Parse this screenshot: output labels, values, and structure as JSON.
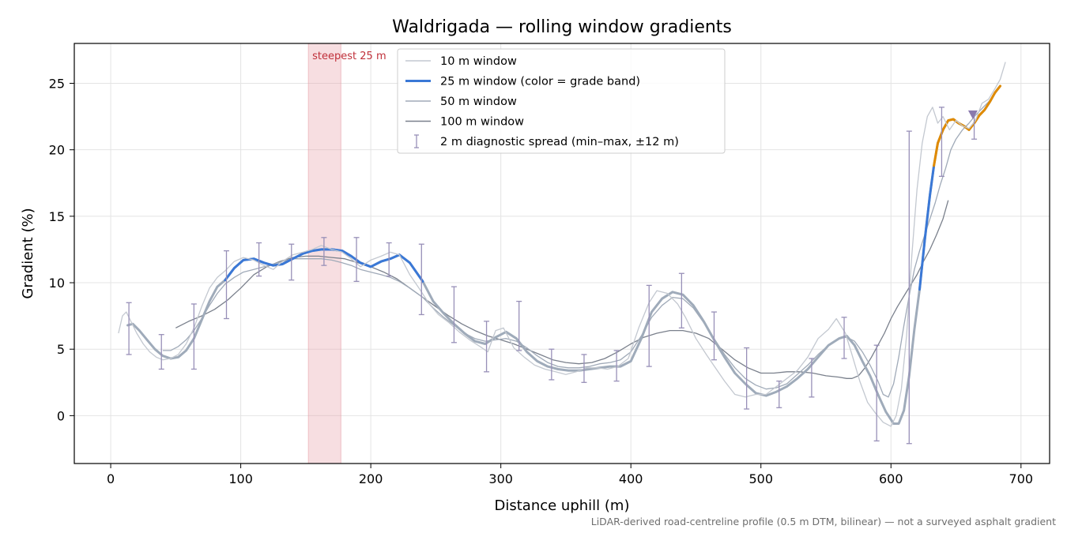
{
  "chart_data": {
    "type": "line",
    "title": "Waldrigada — rolling window gradients",
    "xlabel": "Distance uphill (m)",
    "ylabel": "Gradient (%)",
    "footnote": "LiDAR-derived road-centreline profile (0.5 m DTM, bilinear) — not a surveyed asphalt gradient",
    "xlim": [
      -28,
      722
    ],
    "ylim": [
      -3.6,
      28
    ],
    "x_ticks": [
      0,
      100,
      200,
      300,
      400,
      500,
      600,
      700
    ],
    "y_ticks": [
      0,
      5,
      10,
      15,
      20,
      25
    ],
    "grid": true,
    "legend_position": "top-center",
    "highlight": {
      "x0": 152,
      "x1": 177,
      "label": "steepest 25 m",
      "color": "#e8a0a8"
    },
    "series": [
      {
        "name": "10 m window",
        "color": "#c3c8d0",
        "width": 1.3,
        "x": [
          6,
          9,
          12,
          16,
          20,
          25,
          30,
          35,
          40,
          46,
          52,
          58,
          64,
          70,
          76,
          82,
          88,
          95,
          102,
          110,
          118,
          125,
          132,
          140,
          148,
          155,
          162,
          170,
          178,
          185,
          192,
          200,
          208,
          215,
          222,
          230,
          237,
          245,
          252,
          260,
          268,
          276,
          284,
          290,
          296,
          302,
          310,
          318,
          326,
          334,
          342,
          350,
          358,
          366,
          374,
          382,
          390,
          398,
          406,
          414,
          420,
          428,
          436,
          442,
          450,
          458,
          465,
          472,
          480,
          488,
          496,
          504,
          512,
          520,
          528,
          536,
          544,
          552,
          558,
          565,
          570,
          576,
          582,
          588,
          594,
          600,
          604,
          608,
          612,
          616,
          620,
          624,
          628,
          632,
          636,
          640,
          645,
          650,
          655,
          660,
          665,
          670,
          675,
          680,
          684,
          688
        ],
        "y": [
          6.2,
          7.5,
          7.8,
          7.0,
          6.2,
          5.4,
          4.8,
          4.4,
          4.2,
          4.3,
          4.6,
          5.4,
          6.6,
          8.2,
          9.6,
          10.4,
          10.9,
          11.6,
          11.9,
          11.7,
          11.3,
          11.0,
          11.6,
          12.1,
          12.3,
          12.5,
          12.8,
          12.5,
          12.3,
          11.8,
          11.2,
          11.7,
          12.0,
          12.3,
          12.1,
          10.6,
          9.6,
          8.4,
          7.6,
          7.0,
          6.3,
          5.7,
          5.2,
          4.8,
          6.4,
          6.6,
          5.1,
          4.4,
          3.8,
          3.5,
          3.3,
          3.1,
          3.3,
          3.6,
          3.6,
          3.5,
          3.7,
          4.3,
          6.6,
          8.5,
          9.4,
          9.2,
          8.4,
          7.4,
          5.8,
          4.6,
          3.6,
          2.6,
          1.6,
          1.4,
          1.6,
          1.6,
          2.2,
          2.8,
          3.4,
          4.4,
          5.8,
          6.5,
          7.3,
          6.2,
          4.6,
          2.6,
          1.0,
          0.2,
          -0.5,
          -0.8,
          0.0,
          2.0,
          6.0,
          12.0,
          17.0,
          20.5,
          22.5,
          23.2,
          22.0,
          22.5,
          21.5,
          22.2,
          21.8,
          21.6,
          22.2,
          23.5,
          23.8,
          24.6,
          25.3,
          26.6
        ]
      },
      {
        "name": "25 m window (color = grade band)",
        "color": "#3a78d6",
        "width": 2.8,
        "x": [
          13,
          17,
          22,
          28,
          34,
          40,
          46,
          52,
          58,
          64,
          70,
          76,
          82,
          88,
          95,
          102,
          110,
          118,
          125,
          132,
          140,
          148,
          155,
          162,
          170,
          178,
          185,
          192,
          200,
          208,
          215,
          222,
          230,
          240,
          248,
          256,
          264,
          272,
          280,
          288,
          296,
          304,
          312,
          320,
          328,
          336,
          344,
          352,
          360,
          368,
          376,
          384,
          392,
          400,
          408,
          416,
          424,
          432,
          440,
          448,
          456,
          464,
          472,
          480,
          488,
          496,
          504,
          512,
          520,
          528,
          536,
          544,
          552,
          560,
          566,
          572,
          578,
          584,
          590,
          596,
          602,
          606,
          610,
          614,
          618,
          622,
          626,
          630,
          633,
          636,
          640,
          644,
          648,
          652,
          656,
          660,
          664,
          668,
          672,
          676,
          680,
          684
        ],
        "y": [
          6.8,
          6.9,
          6.4,
          5.7,
          5.0,
          4.5,
          4.3,
          4.4,
          4.9,
          5.8,
          7.2,
          8.6,
          9.7,
          10.2,
          11.1,
          11.7,
          11.8,
          11.5,
          11.3,
          11.4,
          11.8,
          12.2,
          12.4,
          12.5,
          12.5,
          12.4,
          12.0,
          11.5,
          11.2,
          11.6,
          11.8,
          12.1,
          11.5,
          10.1,
          8.6,
          7.7,
          6.9,
          6.2,
          5.6,
          5.4,
          5.9,
          6.3,
          5.8,
          4.8,
          4.1,
          3.7,
          3.5,
          3.4,
          3.4,
          3.5,
          3.6,
          3.7,
          3.7,
          4.1,
          5.8,
          7.8,
          8.8,
          9.3,
          9.1,
          8.3,
          7.1,
          5.7,
          4.4,
          3.2,
          2.4,
          1.7,
          1.5,
          1.8,
          2.2,
          2.8,
          3.5,
          4.4,
          5.3,
          5.8,
          6.0,
          5.3,
          4.1,
          3.0,
          1.6,
          0.3,
          -0.6,
          -0.6,
          0.4,
          3.0,
          6.5,
          9.5,
          13.2,
          16.6,
          18.8,
          20.5,
          21.5,
          22.2,
          22.3,
          22.0,
          21.8,
          21.5,
          22.0,
          22.6,
          23.0,
          23.6,
          24.3,
          24.8
        ],
        "bands": [
          {
            "from": 88,
            "to": 240,
            "color": "#3a78d6"
          },
          {
            "from": 622,
            "to": 633,
            "color": "#3a78d6"
          },
          {
            "from": 633,
            "to": 684,
            "color": "#e08a00"
          }
        ]
      },
      {
        "name": "50 m window",
        "color": "#a0aab8",
        "width": 1.3,
        "x": [
          40,
          46,
          52,
          58,
          64,
          70,
          76,
          82,
          88,
          95,
          102,
          110,
          118,
          125,
          132,
          140,
          148,
          155,
          162,
          170,
          178,
          185,
          192,
          200,
          208,
          215,
          222,
          230,
          240,
          248,
          256,
          264,
          272,
          280,
          288,
          296,
          304,
          312,
          320,
          328,
          336,
          344,
          352,
          360,
          368,
          376,
          384,
          392,
          400,
          408,
          416,
          424,
          432,
          440,
          448,
          456,
          464,
          472,
          480,
          488,
          496,
          504,
          512,
          520,
          528,
          536,
          544,
          552,
          560,
          566,
          572,
          578,
          584,
          590,
          594,
          598,
          602,
          606,
          610,
          614,
          618,
          622,
          626,
          630,
          634,
          638,
          642,
          646,
          650,
          655,
          660,
          665,
          670,
          675,
          680,
          684
        ],
        "y": [
          4.9,
          4.9,
          5.2,
          5.7,
          6.4,
          7.3,
          8.3,
          9.2,
          9.9,
          10.4,
          10.8,
          11.0,
          11.2,
          11.4,
          11.6,
          11.8,
          11.8,
          11.8,
          11.8,
          11.7,
          11.5,
          11.3,
          11.0,
          10.8,
          10.6,
          10.4,
          10.1,
          9.6,
          8.9,
          8.1,
          7.4,
          6.8,
          6.2,
          5.8,
          5.6,
          5.7,
          5.8,
          5.6,
          5.1,
          4.5,
          4.0,
          3.7,
          3.6,
          3.6,
          3.7,
          3.9,
          4.0,
          4.2,
          4.8,
          6.0,
          7.4,
          8.3,
          8.9,
          8.8,
          8.1,
          7.0,
          5.8,
          4.6,
          3.6,
          2.8,
          2.3,
          2.0,
          2.1,
          2.4,
          3.1,
          3.8,
          4.6,
          5.3,
          5.8,
          5.9,
          5.6,
          4.8,
          3.8,
          2.6,
          1.6,
          1.4,
          2.4,
          4.4,
          6.8,
          9.0,
          11.0,
          12.4,
          13.6,
          14.8,
          16.0,
          17.4,
          18.6,
          20.0,
          20.8,
          21.5,
          22.0,
          22.6,
          23.1,
          23.6,
          24.2,
          24.8
        ]
      },
      {
        "name": "100 m window",
        "color": "#7a808c",
        "width": 1.3,
        "x": [
          50,
          60,
          70,
          80,
          90,
          100,
          110,
          120,
          130,
          140,
          150,
          160,
          170,
          180,
          190,
          200,
          210,
          220,
          230,
          240,
          250,
          260,
          270,
          280,
          290,
          300,
          310,
          320,
          330,
          340,
          350,
          360,
          370,
          380,
          390,
          400,
          410,
          420,
          430,
          440,
          450,
          460,
          470,
          480,
          490,
          500,
          510,
          520,
          530,
          540,
          550,
          560,
          566,
          570,
          575,
          580,
          585,
          590,
          595,
          600,
          605,
          610,
          615,
          620,
          625,
          630,
          635,
          640,
          644
        ],
        "y": [
          6.6,
          7.1,
          7.5,
          8.0,
          8.7,
          9.6,
          10.6,
          11.2,
          11.6,
          11.9,
          12.0,
          12.0,
          11.9,
          11.8,
          11.5,
          11.2,
          10.8,
          10.3,
          9.6,
          8.9,
          8.2,
          7.5,
          6.9,
          6.4,
          6.0,
          5.7,
          5.4,
          5.0,
          4.6,
          4.2,
          4.0,
          3.9,
          4.0,
          4.3,
          4.8,
          5.4,
          5.9,
          6.2,
          6.4,
          6.4,
          6.2,
          5.8,
          5.0,
          4.2,
          3.6,
          3.2,
          3.2,
          3.3,
          3.3,
          3.2,
          3.0,
          2.9,
          2.8,
          2.8,
          3.0,
          3.6,
          4.4,
          5.3,
          6.2,
          7.3,
          8.2,
          9.0,
          9.8,
          10.6,
          11.6,
          12.5,
          13.6,
          14.8,
          16.2
        ]
      }
    ],
    "error_bars": {
      "name": "2 m diagnostic spread (min–max, ±12 m)",
      "color": "#9890b8",
      "x": [
        14,
        39,
        64,
        89,
        114,
        139,
        164,
        189,
        214,
        239,
        264,
        289,
        314,
        339,
        364,
        389,
        414,
        439,
        464,
        489,
        514,
        539,
        564,
        589,
        614,
        639,
        664
      ],
      "low": [
        4.6,
        3.5,
        3.5,
        7.3,
        10.5,
        10.2,
        11.3,
        10.1,
        10.5,
        7.6,
        5.5,
        3.3,
        4.9,
        2.7,
        2.5,
        2.6,
        3.7,
        6.6,
        4.2,
        0.5,
        0.6,
        1.4,
        4.3,
        -1.9,
        -2.1,
        18.0,
        20.8
      ],
      "high": [
        8.5,
        6.1,
        8.4,
        12.4,
        13.0,
        12.9,
        13.4,
        13.4,
        13.0,
        12.9,
        9.7,
        7.1,
        8.6,
        5.0,
        4.6,
        4.9,
        9.8,
        10.7,
        7.8,
        5.1,
        2.6,
        4.3,
        7.4,
        5.3,
        21.4,
        23.2,
        22.9
      ],
      "marker": {
        "x": 663,
        "y": 22.6
      }
    }
  }
}
